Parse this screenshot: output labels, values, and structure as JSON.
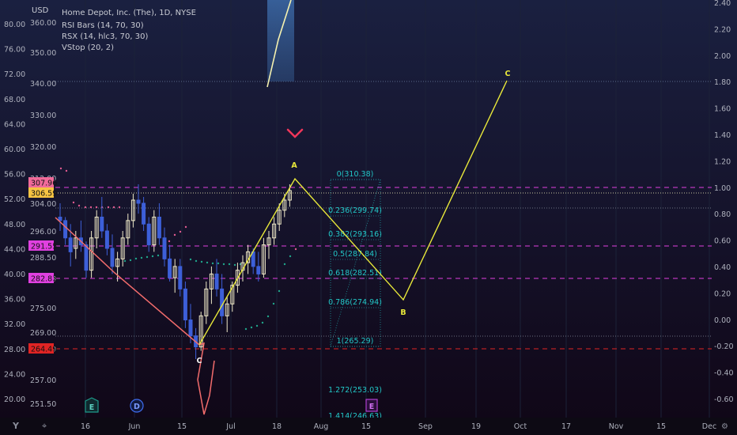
{
  "legend": {
    "currency": "USD",
    "title": "Home Depot, Inc. (The), 1D, NYSE",
    "indicators": [
      "RSI Bars (14, 70, 30)",
      "RSX (14, hlc3, 70, 30)",
      "VStop (20, 2)"
    ]
  },
  "chart_data": {
    "type": "candlestick",
    "price_axis": {
      "ticks": [
        360,
        350,
        340,
        330,
        320,
        312,
        304,
        296,
        288.5,
        282.83,
        275,
        269,
        264.49,
        257,
        251.5
      ],
      "tick_labels": [
        "360.00",
        "350.00",
        "340.00",
        "330.00",
        "320.00",
        "312.00",
        "304.00",
        "296.00",
        "288.50",
        "282.83",
        "275.00",
        "269.00",
        "264.49",
        "257.00",
        "251.50"
      ]
    },
    "rsi_axis_left": {
      "ticks": [
        80,
        76,
        72,
        68,
        64,
        60,
        56,
        52,
        48,
        44,
        40,
        36,
        32,
        28,
        24,
        20
      ],
      "tick_labels": [
        "80.00",
        "76.00",
        "72.00",
        "68.00",
        "64.00",
        "60.00",
        "56.00",
        "52.00",
        "48.00",
        "44.00",
        "40.00",
        "36.00",
        "32.00",
        "28.00",
        "24.00",
        "20.00"
      ]
    },
    "rsx_axis_right": {
      "ticks": [
        2.4,
        2.2,
        2.0,
        1.8,
        1.6,
        1.4,
        1.2,
        1.0,
        0.8,
        0.6,
        0.4,
        0.2,
        0.0,
        -0.2,
        -0.4,
        -0.6
      ],
      "tick_labels": [
        "2.40",
        "2.20",
        "2.00",
        "1.80",
        "1.60",
        "1.40",
        "1.20",
        "1.00",
        "0.80",
        "0.60",
        "0.40",
        "0.20",
        "0.00",
        "-0.20",
        "-0.40",
        "-0.60"
      ]
    },
    "x_axis": {
      "labels": [
        "16",
        "Jun",
        "15",
        "Jul",
        "18",
        "Aug",
        "15",
        "Sep",
        "19",
        "Oct",
        "17",
        "Nov",
        "15",
        "Dec"
      ]
    },
    "price_tags": [
      {
        "value": "307.96",
        "color": "#f06a9a"
      },
      {
        "value": "306.59",
        "color": "#f6c343"
      },
      {
        "value": "291.55",
        "color": "#e040e0"
      },
      {
        "value": "282.83",
        "color": "#e040e0"
      },
      {
        "value": "264.49",
        "color": "#e02424"
      }
    ],
    "fibonacci": [
      {
        "label": "0(310.38)",
        "price": 310.38
      },
      {
        "label": "0.236(299.74)",
        "price": 299.74
      },
      {
        "label": "0.382(293.16)",
        "price": 293.16
      },
      {
        "label": "0.5(287.84)",
        "price": 287.84
      },
      {
        "label": "0.618(282.51)",
        "price": 282.51
      },
      {
        "label": "0.786(274.94)",
        "price": 274.94
      },
      {
        "label": "1(265.29)",
        "price": 265.29
      },
      {
        "label": "1.272(253.03)",
        "price": 253.03
      },
      {
        "label": "1.414(246.63)",
        "price": 246.63
      }
    ],
    "waves": [
      {
        "label": "A",
        "color": "#e8e83a"
      },
      {
        "label": "B",
        "color": "#e8e83a"
      },
      {
        "label": "C",
        "color": "#e8e83a"
      },
      {
        "label": "C",
        "color": "#f0f0f0"
      }
    ],
    "events": [
      {
        "label": "E",
        "kind": "earnings",
        "color": "#1f9a8a"
      },
      {
        "label": "D",
        "kind": "dividend",
        "color": "#3f6df0"
      },
      {
        "label": "E",
        "kind": "earnings",
        "color": "#b040d0"
      }
    ],
    "colors": {
      "background": "#0b0e1c",
      "yellow_wave": "#e8e83a",
      "pink_line": "#f26c6c",
      "fib": "#22c7c7",
      "candle": "#efe9c8",
      "magenta_dash": "#e040e0",
      "red_dash": "#e02424"
    }
  }
}
